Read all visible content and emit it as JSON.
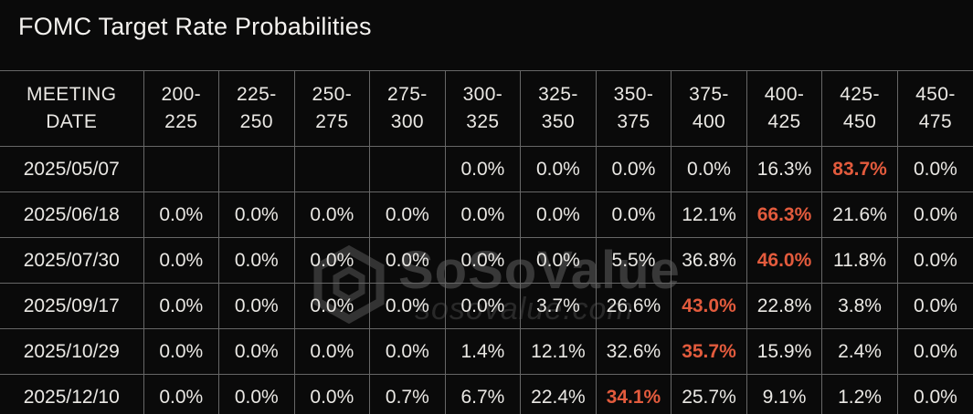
{
  "title": "FOMC Target Rate Probabilities",
  "watermark": {
    "brand": "SoSoValue",
    "domain": "sosovalue.com"
  },
  "colors": {
    "background": "#0a0a0a",
    "grid_line": "#676767",
    "text": "#eae8e4",
    "highlight": "#e35b3d"
  },
  "chart_data": {
    "type": "table",
    "title": "FOMC Target Rate Probabilities",
    "columns": [
      "MEETING\nDATE",
      "200-\n225",
      "225-\n250",
      "250-\n275",
      "275-\n300",
      "300-\n325",
      "325-\n350",
      "350-\n375",
      "375-\n400",
      "400-\n425",
      "425-\n450",
      "450-\n475"
    ],
    "rows": [
      {
        "date": "2025/05/07",
        "values": [
          "",
          "",
          "",
          "",
          "0.0%",
          "0.0%",
          "0.0%",
          "0.0%",
          "16.3%",
          "83.7%",
          "0.0%"
        ],
        "highlight_index": 9
      },
      {
        "date": "2025/06/18",
        "values": [
          "0.0%",
          "0.0%",
          "0.0%",
          "0.0%",
          "0.0%",
          "0.0%",
          "0.0%",
          "12.1%",
          "66.3%",
          "21.6%",
          "0.0%"
        ],
        "highlight_index": 8
      },
      {
        "date": "2025/07/30",
        "values": [
          "0.0%",
          "0.0%",
          "0.0%",
          "0.0%",
          "0.0%",
          "0.0%",
          "5.5%",
          "36.8%",
          "46.0%",
          "11.8%",
          "0.0%"
        ],
        "highlight_index": 8
      },
      {
        "date": "2025/09/17",
        "values": [
          "0.0%",
          "0.0%",
          "0.0%",
          "0.0%",
          "0.0%",
          "3.7%",
          "26.6%",
          "43.0%",
          "22.8%",
          "3.8%",
          "0.0%"
        ],
        "highlight_index": 7
      },
      {
        "date": "2025/10/29",
        "values": [
          "0.0%",
          "0.0%",
          "0.0%",
          "0.0%",
          "1.4%",
          "12.1%",
          "32.6%",
          "35.7%",
          "15.9%",
          "2.4%",
          "0.0%"
        ],
        "highlight_index": 7
      },
      {
        "date": "2025/12/10",
        "values": [
          "0.0%",
          "0.0%",
          "0.0%",
          "0.7%",
          "6.7%",
          "22.4%",
          "34.1%",
          "25.7%",
          "9.1%",
          "1.2%",
          "0.0%"
        ],
        "highlight_index": 6
      }
    ]
  }
}
